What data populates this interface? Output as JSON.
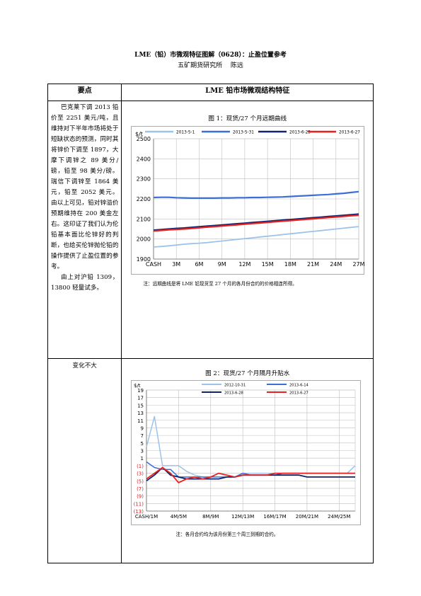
{
  "doc": {
    "title": "LME（铅）市微观特征图解（0628）：止盈位置参考",
    "subtitle": "五矿期货研究所　 陈远"
  },
  "table": {
    "col1_header": "要点",
    "col2_header": "LME 铅市场微观结构特征",
    "row1_paragraph1": "巴克莱下调 2013 铅价至 2251 美元/吨，且维持对下半年市场将处于短缺状态的预测，同时其将锌价下调至 1897，大摩下调锌之 89 美分/磅，铅至 98 美分/磅。瑞信下调锌至 1864 美元，铅至 2052 美元。由以上可见，铅对锌溢价预期维持在 200 美金左右。这印证了我们认为伦铅基本面比伦锌好的判断，也给买伦锌抛伦铅的操作提供了止盈位置的参考。",
    "row1_paragraph2": "由上对沪铅 1309， 13800 轻量试多。",
    "row2_text": "变化不大"
  },
  "chart_data": [
    {
      "type": "line",
      "title": "图 1：现货/27 个月远期曲线",
      "ylabel": "$/t",
      "categories": [
        "CASH",
        "1M",
        "2M",
        "3M",
        "4M",
        "5M",
        "6M",
        "7M",
        "8M",
        "9M",
        "10M",
        "11M",
        "12M",
        "13M",
        "14M",
        "15M",
        "16M",
        "17M",
        "18M",
        "19M",
        "20M",
        "21M",
        "22M",
        "23M",
        "24M",
        "25M",
        "26M",
        "27M"
      ],
      "tick_labels": [
        "CASH",
        "3M",
        "6M",
        "9M",
        "12M",
        "15M",
        "18M",
        "21M",
        "24M",
        "27M"
      ],
      "ylim": [
        1900,
        2500
      ],
      "yticks": [
        "1900",
        "2000",
        "2100",
        "2200",
        "2300",
        "2400",
        "2500"
      ],
      "grid": true,
      "legend": "top",
      "series": [
        {
          "name": "2013-5-1",
          "color": "#9cc3ea",
          "values": [
            1960,
            1963,
            1966,
            1970,
            1974,
            1977,
            1979,
            1982,
            1986,
            1990,
            1994,
            1998,
            2002,
            2006,
            2010,
            2014,
            2018,
            2022,
            2026,
            2030,
            2034,
            2038,
            2042,
            2046,
            2050,
            2054,
            2058,
            2062
          ]
        },
        {
          "name": "2013-5-31",
          "color": "#3c6fd6",
          "values": [
            2207,
            2208,
            2208,
            2206,
            2205,
            2204,
            2204,
            2204,
            2204,
            2205,
            2205,
            2206,
            2206,
            2207,
            2207,
            2208,
            2209,
            2210,
            2212,
            2214,
            2216,
            2218,
            2220,
            2222,
            2225,
            2228,
            2232,
            2236
          ]
        },
        {
          "name": "2013-6-25",
          "color": "#12236e",
          "values": [
            2044,
            2047,
            2050,
            2053,
            2055,
            2058,
            2061,
            2064,
            2067,
            2070,
            2073,
            2076,
            2079,
            2082,
            2085,
            2088,
            2091,
            2094,
            2097,
            2100,
            2103,
            2106,
            2109,
            2112,
            2115,
            2118,
            2121,
            2124
          ]
        },
        {
          "name": "2013-6-27",
          "color": "#e8211f",
          "values": [
            2040,
            2043,
            2046,
            2048,
            2050,
            2053,
            2056,
            2059,
            2062,
            2065,
            2068,
            2071,
            2074,
            2077,
            2080,
            2083,
            2086,
            2089,
            2092,
            2095,
            2098,
            2101,
            2104,
            2107,
            2110,
            2113,
            2116,
            2119
          ]
        }
      ],
      "note": "注：远期曲线是将 LME 铅现货至 27 个月的各月份合约的价格相连所得。"
    },
    {
      "type": "line",
      "title": "图 2：现货/27 个月隔月升贴水",
      "ylabel": "$/t",
      "categories": [
        "CASH/1M",
        "1M/2M",
        "2M/3M",
        "3M/4M",
        "4M/5M",
        "5M/6M",
        "6M/7M",
        "7M/8M",
        "8M/9M",
        "9M/10M",
        "10M/11M",
        "11M/12M",
        "12M/13M",
        "13M/14M",
        "14M/15M",
        "15M/16M",
        "16M/17M",
        "17M/18M",
        "18M/19M",
        "19M/20M",
        "20M/21M",
        "21M/22M",
        "22M/23M",
        "23M/24M",
        "24M/25M",
        "25M/26M",
        "26M/27M"
      ],
      "tick_labels": [
        "CASH/1M",
        "4M/5M",
        "8M/9M",
        "12M/13M",
        "16M/17M",
        "20M/21M",
        "24M/25M"
      ],
      "ylim": [
        -13,
        19
      ],
      "yticks": [
        "(13)",
        "(11)",
        "(9)",
        "(7)",
        "(5)",
        "(3)",
        "(1)",
        "1",
        "3",
        "5",
        "7",
        "9",
        "11",
        "13",
        "15",
        "17",
        "19"
      ],
      "grid": true,
      "legend": "top",
      "series": [
        {
          "name": "2012-10-31",
          "color": "#9cc3ea",
          "values": [
            4,
            12,
            -1,
            -1,
            -1,
            -2.5,
            -3.5,
            -4,
            -4.5,
            -4.5,
            -4,
            -4,
            -3,
            -3,
            -3,
            -3,
            -3,
            -3,
            -3,
            -3,
            -3,
            -3,
            -3,
            -3,
            -3,
            -3,
            -1
          ]
        },
        {
          "name": "2013-6-14",
          "color": "#3c6fd6",
          "values": [
            0,
            -1.5,
            -2,
            -2,
            -4,
            -4,
            -4,
            -4,
            -4,
            -4,
            -4,
            -4,
            -3,
            -3.5,
            -3.5,
            -3.5,
            -3.5,
            -3,
            -3,
            -3,
            -3,
            -3,
            -3,
            -3,
            -3,
            -3,
            -3
          ]
        },
        {
          "name": "2013-6-28",
          "color": "#12236e",
          "values": [
            -5,
            -3.5,
            -1.5,
            -3.5,
            -4,
            -4.5,
            -4.5,
            -4.5,
            -4.5,
            -4.5,
            -4,
            -4,
            -3.5,
            -3.5,
            -3.5,
            -3.5,
            -3.5,
            -3.5,
            -3.5,
            -3.5,
            -4,
            -4,
            -4,
            -4,
            -4,
            -4,
            -4
          ]
        },
        {
          "name": "2013-6-27",
          "color": "#e8211f",
          "values": [
            -4.5,
            -3,
            -1.5,
            -3,
            -5.5,
            -4.5,
            -4,
            -4.5,
            -4,
            -3,
            -3.5,
            -4,
            -3.5,
            -3.5,
            -3.5,
            -3.5,
            -3,
            -3,
            -3,
            -3,
            -3,
            -3,
            -3,
            -3,
            -3,
            -3,
            -3
          ]
        }
      ],
      "note": "注：各月合约均为该月份第三个周三到期的合约。"
    }
  ]
}
